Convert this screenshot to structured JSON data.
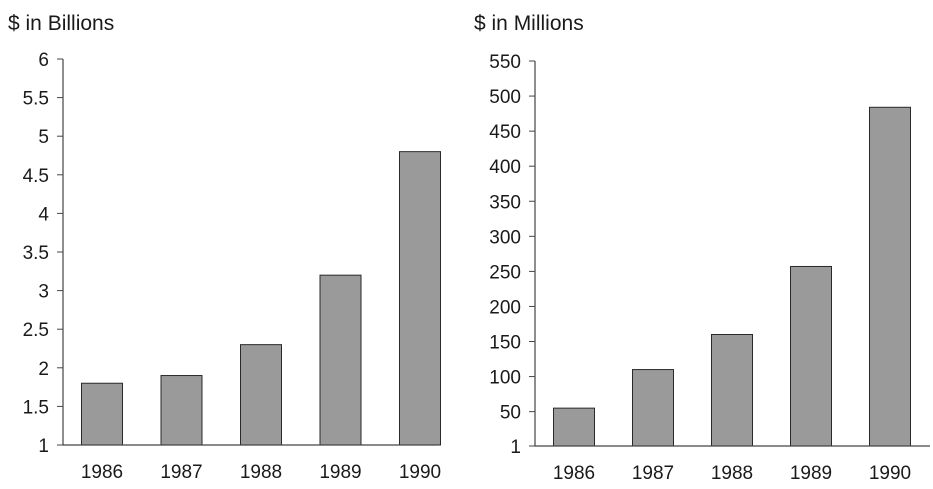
{
  "colors": {
    "bar_fill": "#9a9a9a",
    "bar_stroke": "#2a2a2a",
    "axis": "#444444",
    "background": "#ffffff"
  },
  "chart_data": [
    {
      "type": "bar",
      "title": "$ in Billions",
      "xlabel": "",
      "ylabel": "",
      "categories": [
        "1986",
        "1987",
        "1988",
        "1989",
        "1990"
      ],
      "values": [
        1.8,
        1.9,
        2.3,
        3.2,
        4.8
      ],
      "ylim": [
        1,
        6
      ],
      "yticks": [
        "1",
        "1.5",
        "2",
        "2.5",
        "3",
        "3.5",
        "4",
        "4.5",
        "5",
        "5.5",
        "6"
      ],
      "ytick_values": [
        1,
        1.5,
        2,
        2.5,
        3,
        3.5,
        4,
        4.5,
        5,
        5.5,
        6
      ],
      "grid": false,
      "legend": "none"
    },
    {
      "type": "bar",
      "title": "$ in Millions",
      "xlabel": "",
      "ylabel": "",
      "categories": [
        "1986",
        "1987",
        "1988",
        "1989",
        "1990"
      ],
      "values": [
        55,
        110,
        160,
        257,
        484
      ],
      "ylim": [
        1,
        550
      ],
      "yticks": [
        "1",
        "50",
        "100",
        "150",
        "200",
        "250",
        "300",
        "350",
        "400",
        "450",
        "500",
        "550"
      ],
      "ytick_values": [
        1,
        50,
        100,
        150,
        200,
        250,
        300,
        350,
        400,
        450,
        500,
        550
      ],
      "grid": false,
      "legend": "none"
    }
  ]
}
